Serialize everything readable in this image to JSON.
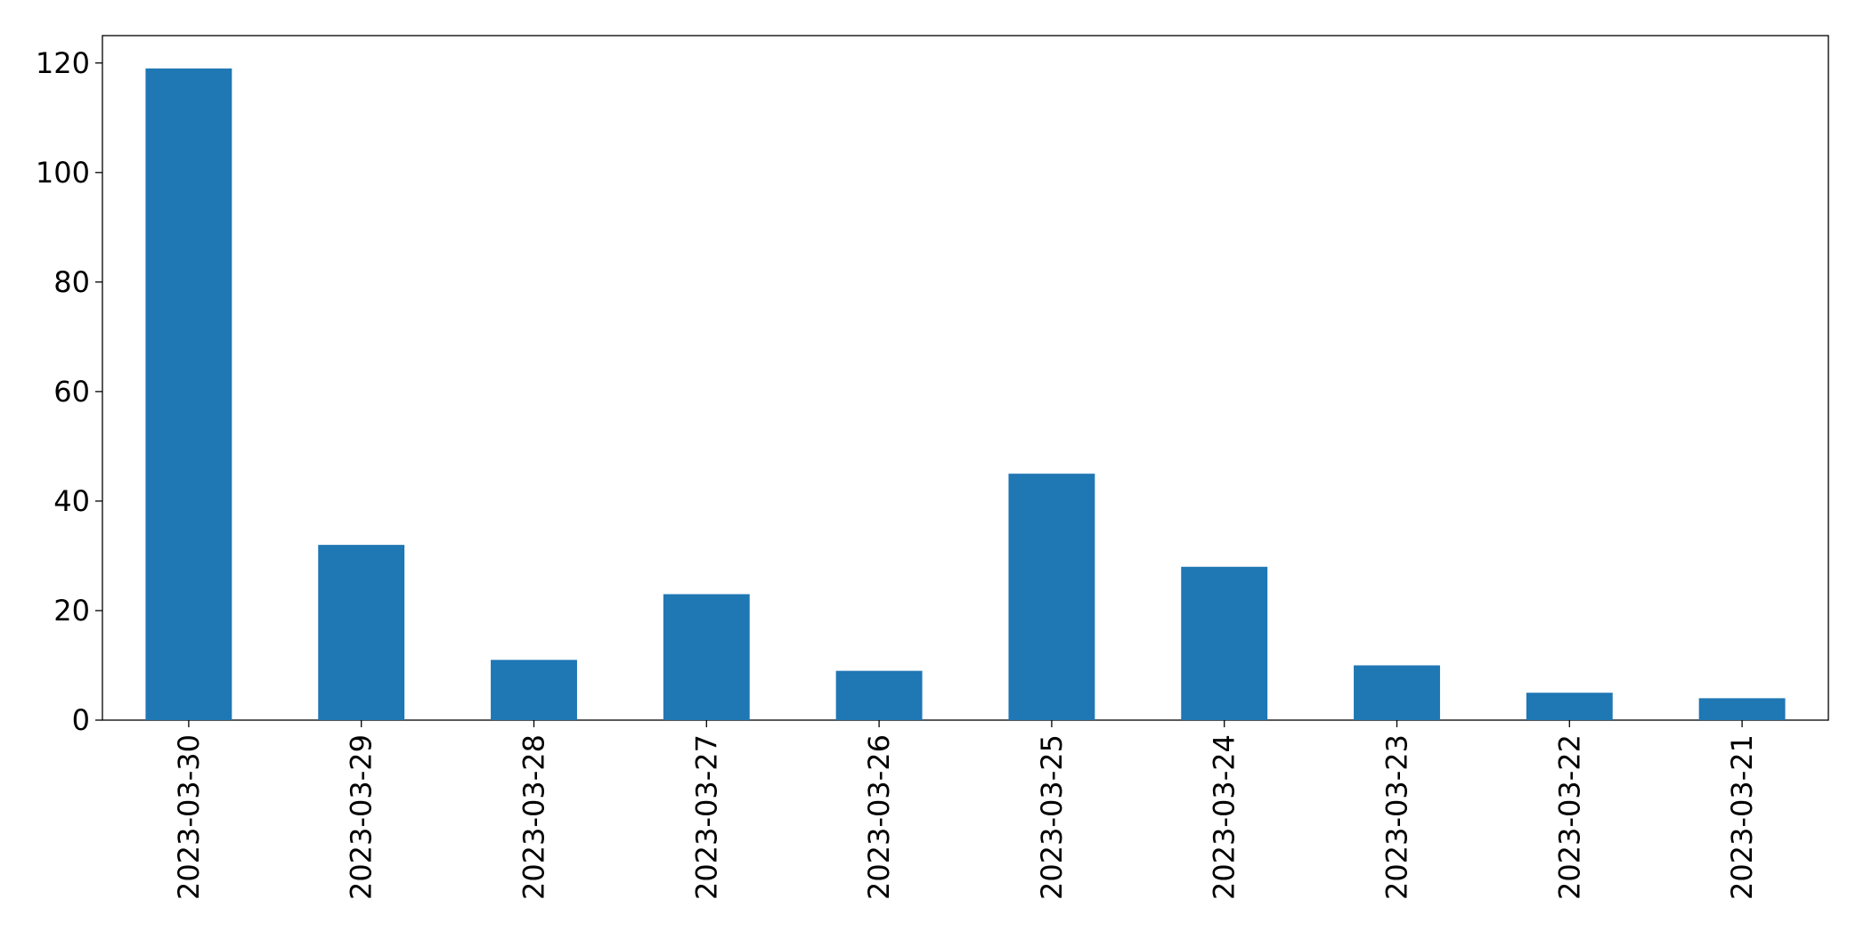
{
  "chart_data": {
    "type": "bar",
    "categories": [
      "2023-03-30",
      "2023-03-29",
      "2023-03-28",
      "2023-03-27",
      "2023-03-26",
      "2023-03-25",
      "2023-03-24",
      "2023-03-23",
      "2023-03-22",
      "2023-03-21"
    ],
    "values": [
      119,
      32,
      11,
      23,
      9,
      45,
      28,
      10,
      5,
      4
    ],
    "color": "#1f77b4",
    "ylim": [
      0,
      125
    ],
    "yticks": [
      0,
      20,
      40,
      60,
      80,
      100,
      120
    ],
    "grid": false
  }
}
